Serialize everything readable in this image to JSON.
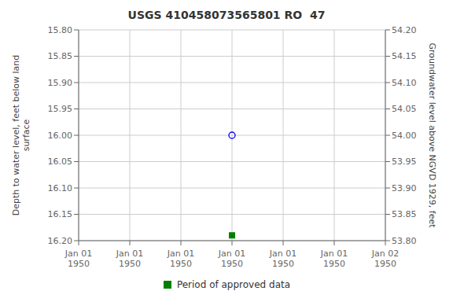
{
  "chart_data": {
    "type": "scatter",
    "title": "USGS 410458073565801 RO  47",
    "ylabel": "Depth to water level, feet below land\nsurface",
    "y2label": "Groundwater level above NGVD 1929, feet",
    "categories": [
      "Jan 01\n1950",
      "Jan 01\n1950",
      "Jan 01\n1950",
      "Jan 01\n1950",
      "Jan 01\n1950",
      "Jan 01\n1950",
      "Jan 02\n1950"
    ],
    "series": [
      {
        "color": "blue",
        "marker": "circle",
        "values": [
          null,
          null,
          null,
          16.0,
          null,
          null,
          null
        ]
      },
      {
        "name": "Period of approved data",
        "color": "#008000",
        "marker": "square",
        "values": [
          null,
          null,
          null,
          16.19,
          null,
          null,
          null
        ]
      }
    ],
    "ylim": [
      16.2,
      15.8
    ],
    "yticks": [
      {
        "value": 15.8,
        "label": "15.80"
      },
      {
        "value": 15.85,
        "label": "15.85"
      },
      {
        "value": 15.9,
        "label": "15.90"
      },
      {
        "value": 15.95,
        "label": "15.95"
      },
      {
        "value": 16.0,
        "label": "16.00"
      },
      {
        "value": 16.05,
        "label": "16.05"
      },
      {
        "value": 16.1,
        "label": "16.10"
      },
      {
        "value": 16.15,
        "label": "16.15"
      },
      {
        "value": 16.2,
        "label": "16.20"
      }
    ],
    "y2lim": [
      53.8,
      54.2
    ],
    "y2ticks": [
      {
        "value": 54.2,
        "label": "54.20"
      },
      {
        "value": 54.15,
        "label": "54.15"
      },
      {
        "value": 54.1,
        "label": "54.10"
      },
      {
        "value": 54.05,
        "label": "54.05"
      },
      {
        "value": 54.0,
        "label": "54.00"
      },
      {
        "value": 53.95,
        "label": "53.95"
      },
      {
        "value": 53.9,
        "label": "53.90"
      },
      {
        "value": 53.85,
        "label": "53.85"
      },
      {
        "value": 53.8,
        "label": "53.80"
      }
    ],
    "grid": true,
    "legend": "bottom"
  }
}
